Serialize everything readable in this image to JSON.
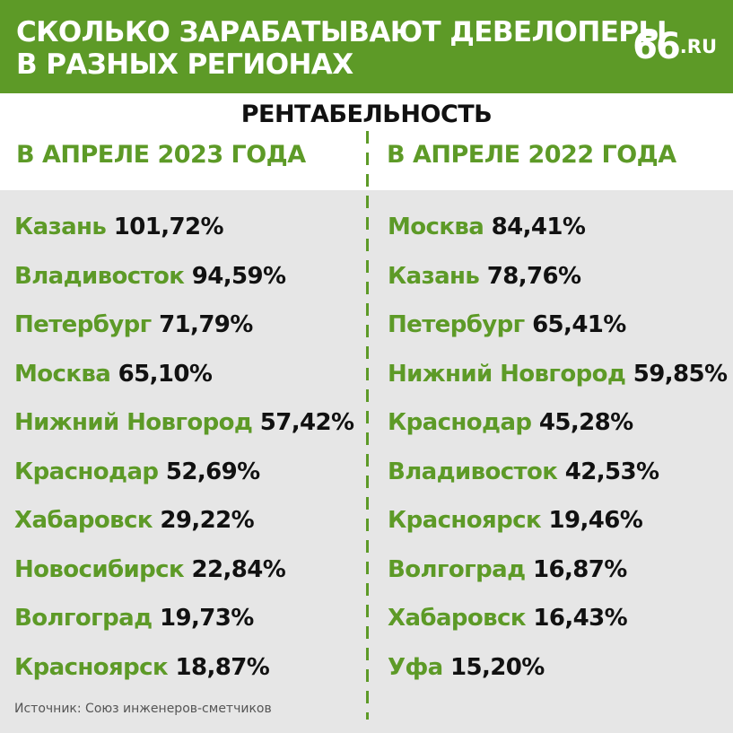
{
  "header": {
    "title_line1": "СКОЛЬКО ЗАРАБАТЫВАЮТ ДЕВЕЛОПЕРЫ",
    "title_line2": "В РАЗНЫХ РЕГИОНАХ",
    "logo_number": "66",
    "logo_suffix": ".RU"
  },
  "subtitle": "РЕНТАБЕЛЬНОСТЬ",
  "columns": [
    {
      "heading": "В АПРЕЛЕ 2023 ГОДА",
      "rows": [
        {
          "city": "Казань",
          "value": "101,72%"
        },
        {
          "city": "Владивосток",
          "value": "94,59%"
        },
        {
          "city": "Петербург",
          "value": "71,79%"
        },
        {
          "city": "Москва",
          "value": "65,10%"
        },
        {
          "city": "Нижний Новгород",
          "value": "57,42%"
        },
        {
          "city": "Краснодар",
          "value": "52,69%"
        },
        {
          "city": "Хабаровск",
          "value": "29,22%"
        },
        {
          "city": "Новосибирск",
          "value": "22,84%"
        },
        {
          "city": "Волгоград",
          "value": "19,73%"
        },
        {
          "city": "Красноярск",
          "value": "18,87%"
        }
      ]
    },
    {
      "heading": "В АПРЕЛЕ 2022 ГОДА",
      "rows": [
        {
          "city": "Москва",
          "value": "84,41%"
        },
        {
          "city": "Казань",
          "value": "78,76%"
        },
        {
          "city": "Петербург",
          "value": "65,41%"
        },
        {
          "city": "Нижний Новгород",
          "value": "59,85%"
        },
        {
          "city": "Краснодар",
          "value": "45,28%"
        },
        {
          "city": "Владивосток",
          "value": "42,53%"
        },
        {
          "city": "Красноярск",
          "value": "19,46%"
        },
        {
          "city": "Волгоград",
          "value": "16,87%"
        },
        {
          "city": "Хабаровск",
          "value": "16,43%"
        },
        {
          "city": "Уфа",
          "value": "15,20%"
        }
      ]
    }
  ],
  "source": "Источник: Союз инженеров-сметчиков",
  "colors": {
    "accent_green": "#5d9a27",
    "panel_gray": "#e6e6e6",
    "text_dark": "#111111"
  }
}
